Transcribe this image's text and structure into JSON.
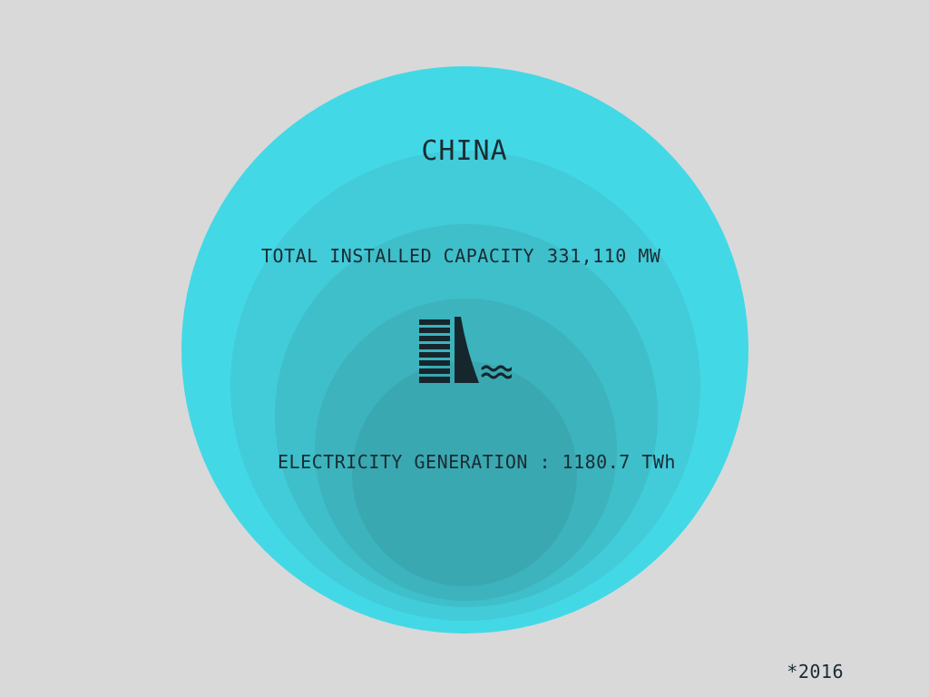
{
  "title": "CHINA",
  "capacity": {
    "label": "TOTAL INSTALLED CAPACITY",
    "value": "331,110 MW"
  },
  "generation": {
    "label": "ELECTRICITY GENERATION : 1180.7 TWh"
  },
  "footnote": "*2016",
  "icon": "hydro-dam-icon",
  "colors": {
    "background": "#d9d9d9",
    "outer_circle": "#43d8e6",
    "inner_circle": "#3aa8b0",
    "text": "#1b2b33"
  }
}
